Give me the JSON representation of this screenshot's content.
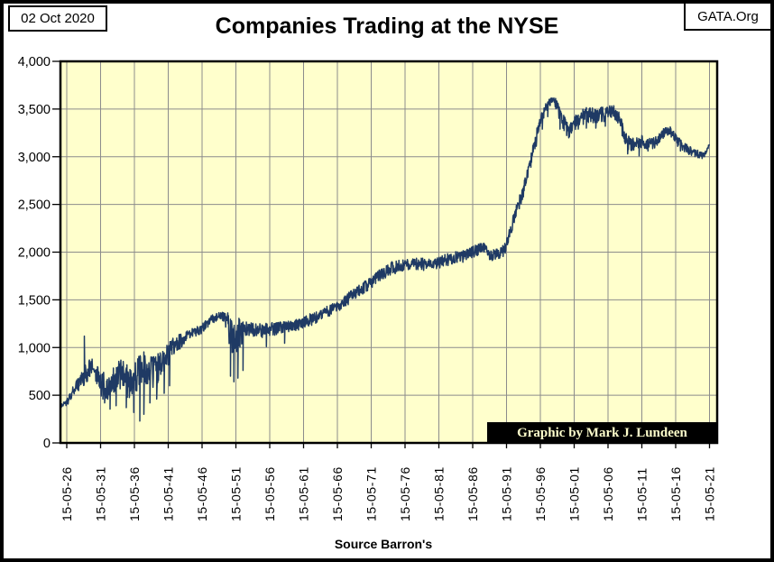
{
  "header": {
    "date_label": "02 Oct 2020",
    "org_label": "GATA.Org",
    "title": "Companies Trading at the NYSE"
  },
  "footer": {
    "source_label": "Source Barron's"
  },
  "plot": {
    "credit_label": "Graphic by Mark J. Lundeen"
  },
  "colors": {
    "line": "#1f3a64",
    "plot_bg": "#ffffcc",
    "grid": "#8c8c8c",
    "frame": "#000000",
    "credit_bg": "#000000",
    "credit_text": "#ffffcc"
  },
  "chart_data": {
    "type": "line",
    "title": "Companies Trading at the NYSE",
    "source": "Source Barron's",
    "xlabel": "",
    "ylabel": "",
    "grid": true,
    "legend": "none",
    "ylim": [
      0,
      4000
    ],
    "y_tick_labels": [
      "0",
      "500",
      "1,000",
      "1,500",
      "2,000",
      "2,500",
      "3,000",
      "3,500",
      "4,000"
    ],
    "x_tick_labels": [
      "15-05-26",
      "15-05-31",
      "15-05-36",
      "15-05-41",
      "15-05-46",
      "15-05-51",
      "15-05-56",
      "15-05-61",
      "15-05-66",
      "15-05-71",
      "15-05-76",
      "15-05-81",
      "15-05-86",
      "15-05-91",
      "15-05-96",
      "15-05-01",
      "15-05-06",
      "15-05-11",
      "15-05-16",
      "15-05-21"
    ],
    "x_range_years": [
      1926,
      2021
    ],
    "series": [
      {
        "name": "Companies trading at the NYSE (weekly count)",
        "anchors": [
          [
            1925.15,
            385,
            18
          ],
          [
            1926,
            430,
            30
          ],
          [
            1926.5,
            490,
            40
          ],
          [
            1927,
            555,
            50
          ],
          [
            1927.5,
            615,
            60
          ],
          [
            1928,
            660,
            75
          ],
          [
            1928.5,
            705,
            85
          ],
          [
            1929,
            760,
            90
          ],
          [
            1929.5,
            810,
            85
          ],
          [
            1930,
            785,
            95
          ],
          [
            1930.5,
            720,
            105
          ],
          [
            1931,
            660,
            120
          ],
          [
            1931.5,
            610,
            130
          ],
          [
            1932,
            570,
            125
          ],
          [
            1932.5,
            610,
            120
          ],
          [
            1933,
            675,
            130
          ],
          [
            1933.5,
            715,
            140
          ],
          [
            1934,
            740,
            130
          ],
          [
            1934.5,
            710,
            140
          ],
          [
            1935,
            665,
            150
          ],
          [
            1935.5,
            625,
            160
          ],
          [
            1936,
            690,
            150
          ],
          [
            1936.5,
            755,
            145
          ],
          [
            1937,
            800,
            150
          ],
          [
            1937.5,
            820,
            145
          ],
          [
            1938,
            775,
            160
          ],
          [
            1938.5,
            745,
            160
          ],
          [
            1939,
            780,
            150
          ],
          [
            1939.5,
            805,
            140
          ],
          [
            1940,
            830,
            120
          ],
          [
            1940.5,
            870,
            110
          ],
          [
            1941,
            950,
            100
          ],
          [
            1941.5,
            1000,
            90
          ],
          [
            1942,
            1030,
            80
          ],
          [
            1942.5,
            1060,
            70
          ],
          [
            1943,
            1090,
            65
          ],
          [
            1943.5,
            1120,
            60
          ],
          [
            1944,
            1140,
            55
          ],
          [
            1945,
            1170,
            50
          ],
          [
            1946,
            1215,
            50
          ],
          [
            1946.5,
            1245,
            45
          ],
          [
            1947,
            1275,
            42
          ],
          [
            1947.5,
            1300,
            40
          ],
          [
            1948,
            1320,
            36
          ],
          [
            1948.5,
            1335,
            34
          ],
          [
            1949,
            1330,
            40
          ],
          [
            1949.5,
            1300,
            70
          ],
          [
            1950,
            1220,
            140
          ],
          [
            1950.5,
            1160,
            190
          ],
          [
            1951,
            1150,
            200
          ],
          [
            1951.5,
            1170,
            150
          ],
          [
            1952,
            1190,
            110
          ],
          [
            1952.5,
            1200,
            85
          ],
          [
            1953,
            1195,
            70
          ],
          [
            1954,
            1185,
            65
          ],
          [
            1955,
            1190,
            62
          ],
          [
            1956,
            1200,
            60
          ],
          [
            1957,
            1205,
            60
          ],
          [
            1958,
            1215,
            58
          ],
          [
            1959,
            1230,
            55
          ],
          [
            1960,
            1245,
            52
          ],
          [
            1961,
            1270,
            52
          ],
          [
            1962,
            1300,
            55
          ],
          [
            1963,
            1330,
            52
          ],
          [
            1964,
            1370,
            50
          ],
          [
            1965,
            1400,
            50
          ],
          [
            1966,
            1440,
            50
          ],
          [
            1967,
            1490,
            52
          ],
          [
            1968,
            1540,
            55
          ],
          [
            1969,
            1590,
            55
          ],
          [
            1970,
            1640,
            58
          ],
          [
            1971,
            1700,
            60
          ],
          [
            1972,
            1750,
            62
          ],
          [
            1973,
            1800,
            62
          ],
          [
            1974,
            1840,
            60
          ],
          [
            1975,
            1860,
            56
          ],
          [
            1976,
            1870,
            55
          ],
          [
            1977,
            1880,
            52
          ],
          [
            1978,
            1885,
            55
          ],
          [
            1979,
            1880,
            55
          ],
          [
            1980,
            1885,
            55
          ],
          [
            1981,
            1905,
            55
          ],
          [
            1982,
            1925,
            55
          ],
          [
            1983,
            1945,
            55
          ],
          [
            1984,
            1955,
            55
          ],
          [
            1985,
            1975,
            55
          ],
          [
            1986,
            2005,
            55
          ],
          [
            1987,
            2040,
            52
          ],
          [
            1987.7,
            2055,
            50
          ],
          [
            1988.4,
            1960,
            55
          ],
          [
            1989,
            1975,
            50
          ],
          [
            1990,
            2000,
            50
          ],
          [
            1990.7,
            2030,
            50
          ],
          [
            1991.2,
            2140,
            55
          ],
          [
            1992,
            2330,
            58
          ],
          [
            1992.7,
            2500,
            60
          ],
          [
            1993.4,
            2620,
            60
          ],
          [
            1994.1,
            2840,
            60
          ],
          [
            1994.8,
            3040,
            60
          ],
          [
            1995.5,
            3250,
            58
          ],
          [
            1996.2,
            3420,
            52
          ],
          [
            1996.9,
            3530,
            45
          ],
          [
            1997.5,
            3585,
            32
          ],
          [
            1998,
            3595,
            30
          ],
          [
            1998.5,
            3540,
            60
          ],
          [
            1999,
            3450,
            80
          ],
          [
            1999.6,
            3340,
            80
          ],
          [
            2000.2,
            3260,
            72
          ],
          [
            2000.8,
            3310,
            70
          ],
          [
            2001.4,
            3390,
            70
          ],
          [
            2002,
            3420,
            70
          ],
          [
            2003,
            3450,
            70
          ],
          [
            2004,
            3440,
            70
          ],
          [
            2005,
            3450,
            70
          ],
          [
            2006,
            3470,
            65
          ],
          [
            2006.8,
            3480,
            60
          ],
          [
            2007.5,
            3430,
            60
          ],
          [
            2008,
            3330,
            70
          ],
          [
            2008.6,
            3200,
            70
          ],
          [
            2009.2,
            3140,
            62
          ],
          [
            2010,
            3140,
            60
          ],
          [
            2011,
            3170,
            60
          ],
          [
            2012,
            3140,
            55
          ],
          [
            2013,
            3160,
            50
          ],
          [
            2013.8,
            3220,
            46
          ],
          [
            2014.5,
            3280,
            40
          ],
          [
            2015.1,
            3280,
            40
          ],
          [
            2015.7,
            3230,
            45
          ],
          [
            2016.4,
            3160,
            45
          ],
          [
            2017.2,
            3110,
            42
          ],
          [
            2018,
            3070,
            40
          ],
          [
            2019,
            3040,
            36
          ],
          [
            2019.8,
            3030,
            34
          ],
          [
            2020.4,
            3045,
            32
          ],
          [
            2020.75,
            3090,
            26
          ],
          [
            2020.95,
            3125,
            18
          ]
        ],
        "spikes": [
          [
            1928.6,
            1120
          ],
          [
            1931.6,
            420
          ],
          [
            1932.4,
            355
          ],
          [
            1933.3,
            390
          ],
          [
            1934.8,
            370
          ],
          [
            1935.9,
            320
          ],
          [
            1936.8,
            230
          ],
          [
            1937.4,
            300
          ],
          [
            1938.3,
            420
          ],
          [
            1939.3,
            460
          ],
          [
            1940.4,
            520
          ],
          [
            1941.2,
            600
          ],
          [
            1950.2,
            700
          ],
          [
            1950.7,
            640
          ],
          [
            1951.3,
            680
          ],
          [
            1952.05,
            760
          ],
          [
            1955.5,
            1010
          ],
          [
            1958.2,
            1045
          ],
          [
            1994.6,
            2890
          ],
          [
            1995.4,
            3110
          ],
          [
            1996.3,
            3290
          ],
          [
            1997.1,
            3420
          ],
          [
            1998.9,
            3290
          ],
          [
            1999.5,
            3275
          ],
          [
            2001.6,
            3290
          ],
          [
            2002.8,
            3300
          ],
          [
            2004.2,
            3300
          ],
          [
            2005.6,
            3320
          ],
          [
            2008.9,
            3030
          ],
          [
            2010.6,
            3010
          ],
          [
            2011.9,
            3060
          ],
          [
            2016.7,
            3060
          ],
          [
            2019.9,
            2982
          ]
        ]
      }
    ]
  }
}
